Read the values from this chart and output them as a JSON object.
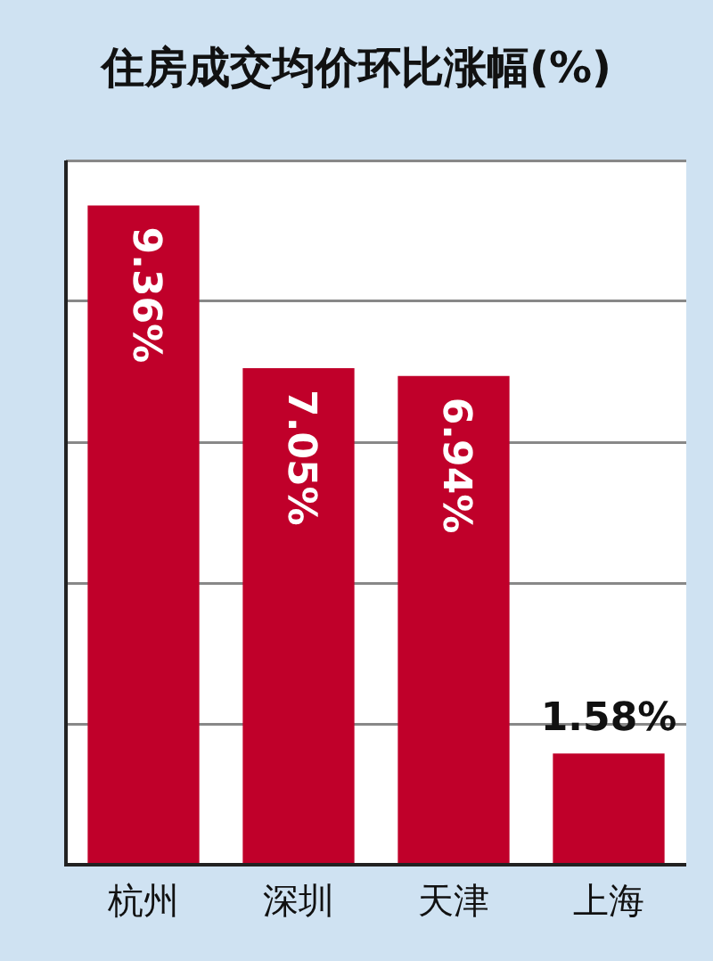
{
  "chart_data": {
    "type": "bar",
    "title": "住房成交均价环比涨幅(%)",
    "categories": [
      "杭州",
      "深圳",
      "天津",
      "上海"
    ],
    "values": [
      9.36,
      7.05,
      6.94,
      1.58
    ],
    "value_labels": [
      "9.36%",
      "7.05%",
      "6.94%",
      "1.58%"
    ],
    "color": "#c0002a",
    "relative": false,
    "ylim": [
      0,
      10
    ],
    "yticks": [
      {
        "value": 0,
        "label": null
      },
      {
        "value": 2,
        "label": null
      },
      {
        "value": 4,
        "label": null
      },
      {
        "value": 6,
        "label": null
      },
      {
        "value": 8,
        "label": null
      },
      {
        "value": 10,
        "label": null
      }
    ],
    "grid": "y",
    "tick_labels": "x",
    "legend": false
  }
}
